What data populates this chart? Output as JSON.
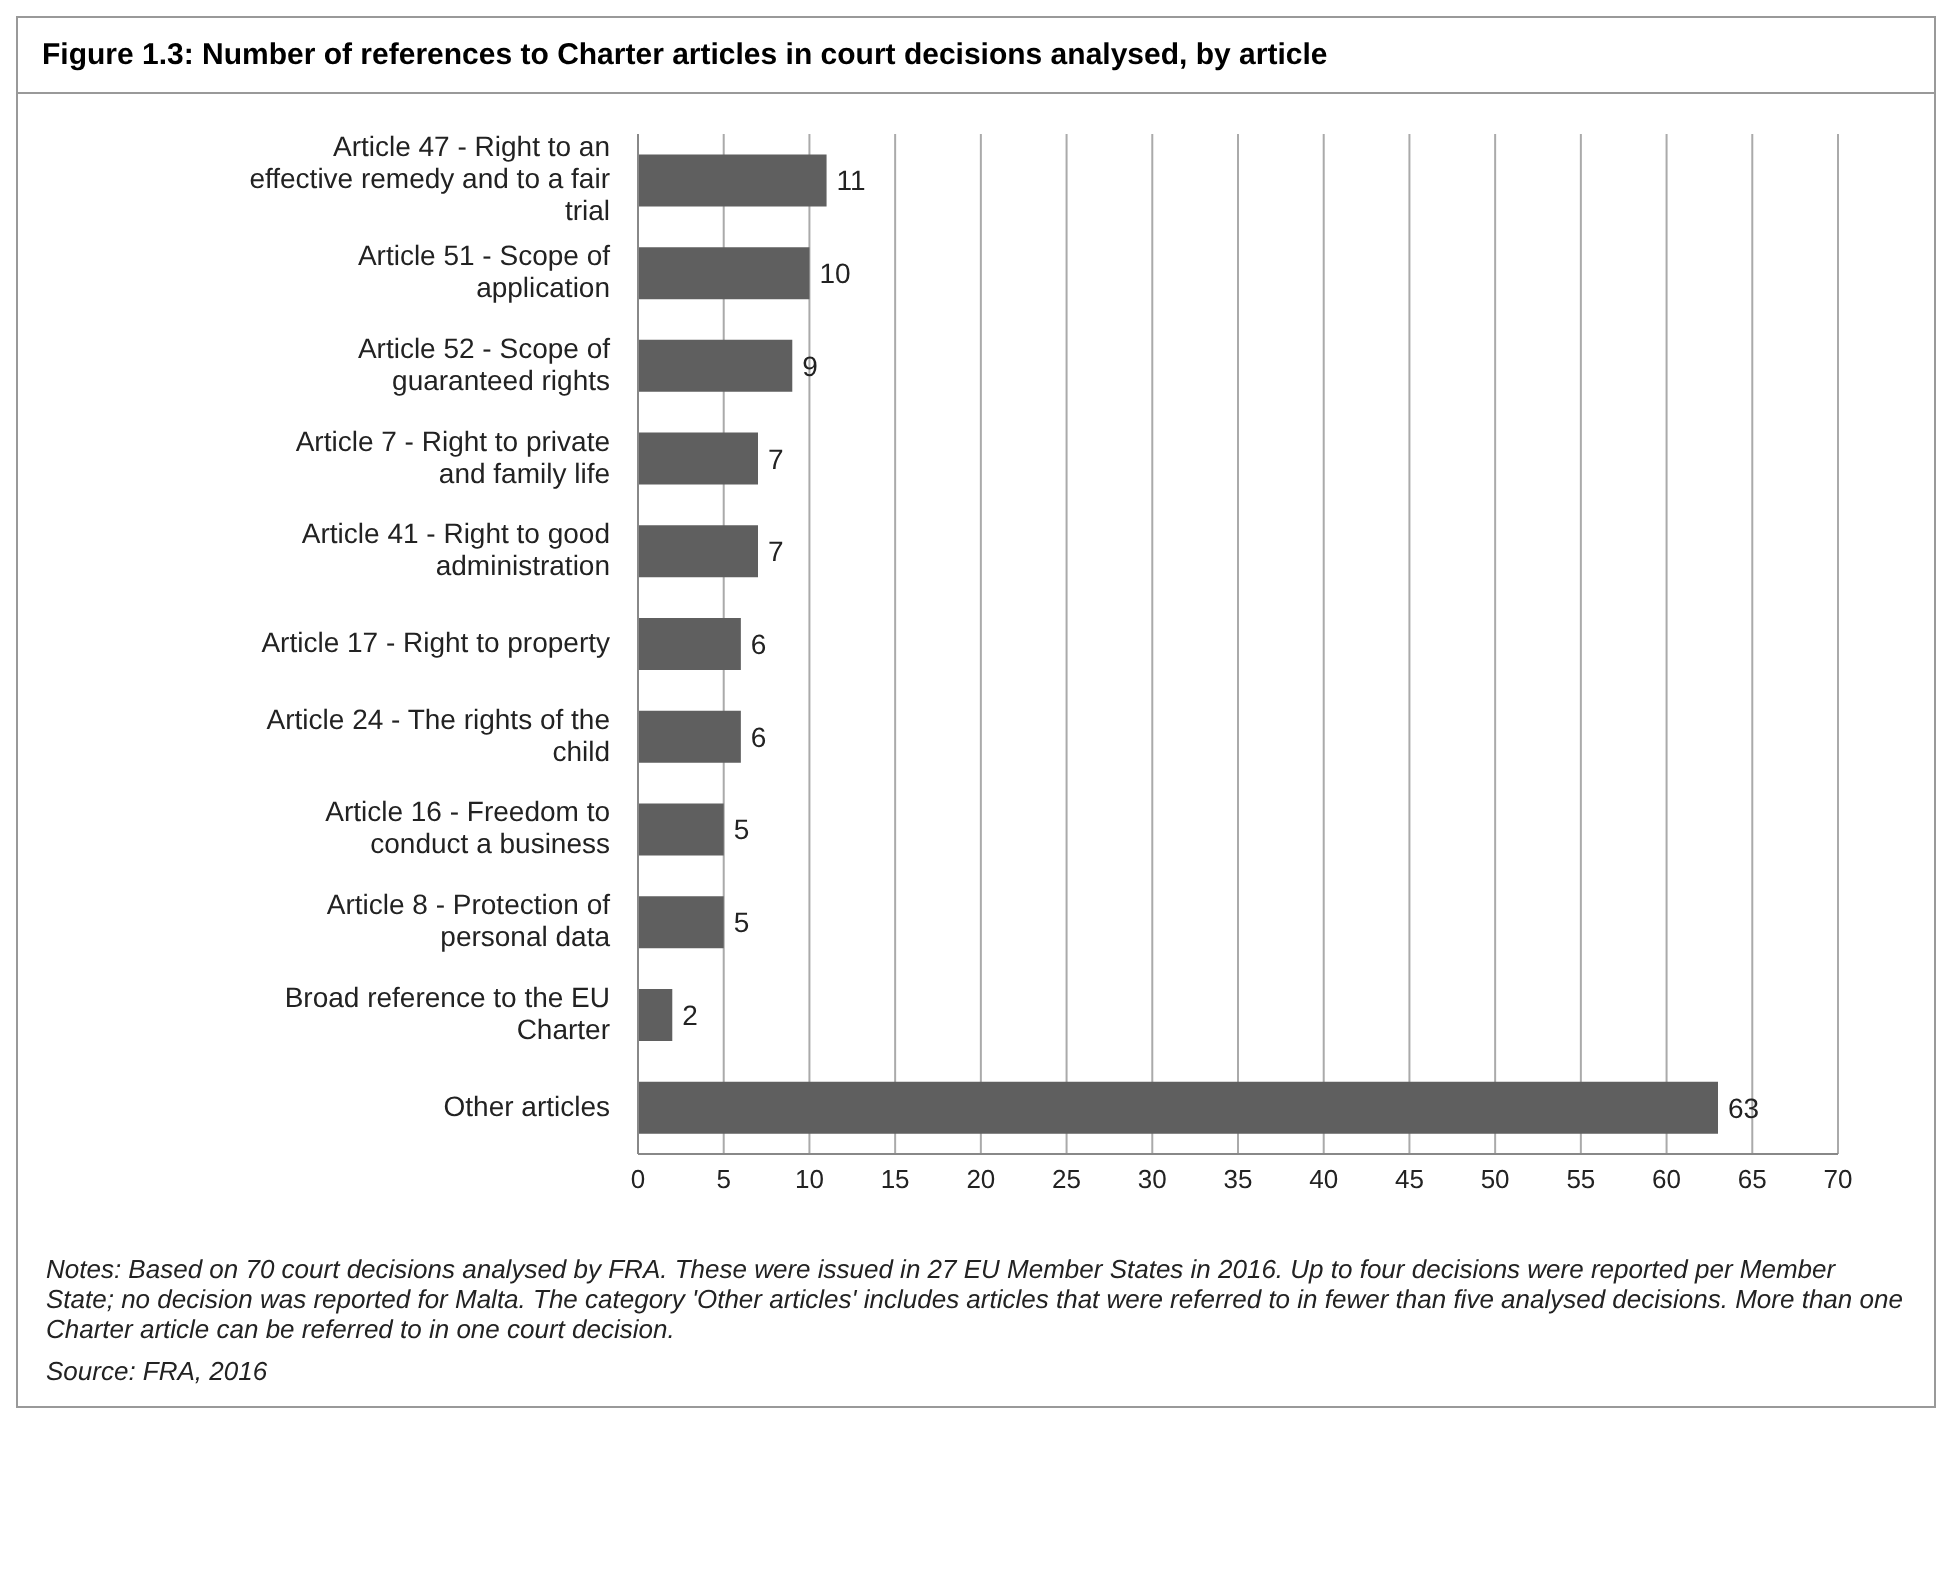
{
  "chart_data": {
    "type": "bar",
    "orientation": "horizontal",
    "title": "Figure 1.3: Number of references to Charter articles in court decisions analysed, by article",
    "categories": [
      "Article 47 - Right to an effective remedy and to a fair trial",
      "Article 51 - Scope of application",
      "Article 52 - Scope of guaranteed rights",
      "Article 7 - Right to private and family life",
      "Article 41 - Right to good administration",
      "Article 17 - Right to property",
      "Article 24 - The rights of the child",
      "Article 16 - Freedom to conduct a business",
      "Article 8 - Protection of personal data",
      "Broad reference to the EU Charter",
      "Other articles"
    ],
    "values": [
      11,
      10,
      9,
      7,
      7,
      6,
      6,
      5,
      5,
      2,
      63
    ],
    "color": "#5f5f5f",
    "xlim": [
      0,
      70
    ],
    "xticks": [
      0,
      5,
      10,
      15,
      20,
      25,
      30,
      35,
      40,
      45,
      50,
      55,
      60,
      65,
      70
    ],
    "grid": "x",
    "data_labels": true,
    "annotations": [
      "Notes: Based on 70 court decisions analysed by FRA. These were issued in 27 EU Member States in 2016. Up to four decisions were reported per Member State; no decision was reported for Malta. The category 'Other articles' includes articles that were referred to in fewer than five analysed decisions. More than one Charter article can be referred to in one court decision.",
      "Source: FRA, 2016"
    ]
  }
}
